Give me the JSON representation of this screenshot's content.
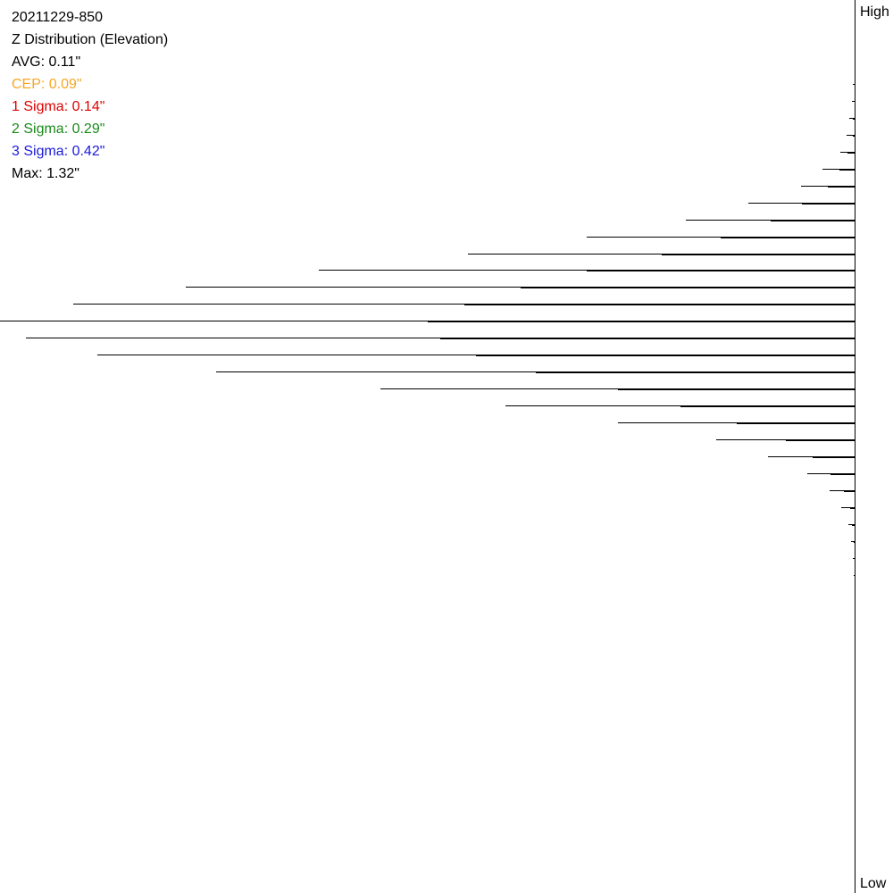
{
  "chart_data": {
    "type": "bar",
    "orientation": "horizontal",
    "title": "20211229-850",
    "subtitle": "Z Distribution (Elevation)",
    "annotations": [
      {
        "text": "AVG: 0.11\"",
        "color": "#000000"
      },
      {
        "text": "CEP: 0.09\"",
        "color": "#f5a623"
      },
      {
        "text": "1 Sigma: 0.14\"",
        "color": "#e00000"
      },
      {
        "text": "2 Sigma: 0.29\"",
        "color": "#1a8a1a"
      },
      {
        "text": "3 Sigma: 0.42\"",
        "color": "#1a1adc"
      },
      {
        "text": "Max: 1.32\"",
        "color": "#000000"
      }
    ],
    "axis_labels": {
      "top": "High",
      "bottom": "Low"
    },
    "series": [
      {
        "color": "#000000",
        "values": [
          2,
          3,
          6,
          9,
          16,
          36,
          60,
          119,
          189,
          300,
          433,
          600,
          749,
          875,
          957,
          928,
          848,
          715,
          531,
          391,
          265,
          155,
          97,
          53,
          28,
          15,
          7,
          4,
          2,
          1
        ]
      },
      {
        "color": "#000000",
        "values": [
          0,
          0,
          2,
          2,
          8,
          17,
          30,
          59,
          94,
          150,
          216,
          300,
          374,
          437,
          478,
          464,
          424,
          357,
          265,
          195,
          132,
          77,
          47,
          27,
          12,
          5,
          3,
          1,
          0,
          0
        ]
      }
    ]
  }
}
